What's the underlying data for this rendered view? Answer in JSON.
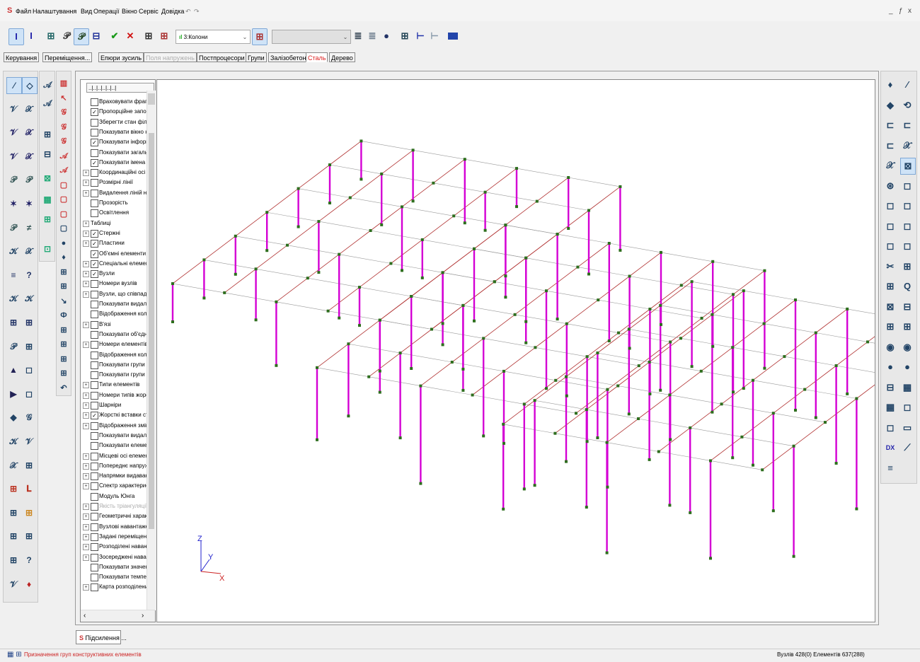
{
  "menu": {
    "items": [
      "Файл",
      "Налаштування",
      "Вид",
      "Операції",
      "Вікно",
      "Сервіс",
      "Довідка"
    ],
    "undo_icon": "undo-icon",
    "redo_icon": "redo-icon",
    "window_controls": [
      "_",
      "ƒ",
      "x"
    ]
  },
  "toolbar": {
    "combo_value": "3:Колони",
    "combo_empty": ""
  },
  "tabs": [
    {
      "label": "Керування",
      "state": "normal"
    },
    {
      "label": "Переміщення...",
      "state": "normal"
    },
    {
      "label": "Епюри зусиль",
      "state": "normal"
    },
    {
      "label": "Поля напружень",
      "state": "disabled"
    },
    {
      "label": "Постпроцесори",
      "state": "normal"
    },
    {
      "label": "Групи",
      "state": "normal"
    },
    {
      "label": "Залізобетон",
      "state": "normal"
    },
    {
      "label": "Сталь",
      "state": "active"
    },
    {
      "label": "Дерево",
      "state": "normal"
    }
  ],
  "tree": {
    "header": "..|..|..|..|..|..|",
    "rows": [
      {
        "label": "Враховувати фрагм",
        "checked": false,
        "expander": false
      },
      {
        "label": "Пропорційне запов",
        "checked": true,
        "expander": false
      },
      {
        "label": "Зберегти стан філь",
        "checked": false,
        "expander": false
      },
      {
        "label": "Показувати вікно на",
        "checked": false,
        "expander": false
      },
      {
        "label": "Показувати інформ",
        "checked": true,
        "expander": false
      },
      {
        "label": "Показувати загальн",
        "checked": false,
        "expander": false
      },
      {
        "label": "Показувати імена о",
        "checked": true,
        "expander": false
      },
      {
        "label": "Координаційні осі",
        "checked": false,
        "expander": true
      },
      {
        "label": "Розмірні лінії",
        "checked": false,
        "expander": true
      },
      {
        "label": "Видалення ліній нев",
        "checked": false,
        "expander": true
      },
      {
        "label": "Прозорість",
        "checked": false,
        "expander": false
      },
      {
        "label": "Освітлення",
        "checked": false,
        "expander": false
      },
      {
        "label": "Таблиці",
        "checked": null,
        "expander": true
      },
      {
        "label": "Стержні",
        "checked": true,
        "expander": true
      },
      {
        "label": "Пластини",
        "checked": true,
        "expander": true
      },
      {
        "label": "Об'ємні елементи",
        "checked": true,
        "expander": false
      },
      {
        "label": "Спеціальні елементи",
        "checked": true,
        "expander": true
      },
      {
        "label": "Вузли",
        "checked": true,
        "expander": true
      },
      {
        "label": "Номери вузлів",
        "checked": false,
        "expander": true
      },
      {
        "label": "Вузли, що співпадаю",
        "checked": false,
        "expander": true
      },
      {
        "label": "Показувати видален",
        "checked": false,
        "expander": false
      },
      {
        "label": "Відображення кольо",
        "checked": false,
        "expander": false
      },
      {
        "label": "В'язі",
        "checked": false,
        "expander": true
      },
      {
        "label": "Показувати об'єдна",
        "checked": false,
        "expander": false
      },
      {
        "label": "Номери елементів",
        "checked": false,
        "expander": true
      },
      {
        "label": "Відображення кольо",
        "checked": false,
        "expander": false
      },
      {
        "label": "Показувати групи к",
        "checked": false,
        "expander": false
      },
      {
        "label": "Показувати групи а",
        "checked": false,
        "expander": false
      },
      {
        "label": "Типи елементів",
        "checked": false,
        "expander": true
      },
      {
        "label": "Номери типів жорст",
        "checked": false,
        "expander": true
      },
      {
        "label": "Шарніри",
        "checked": false,
        "expander": true
      },
      {
        "label": "Жорсткі вставки ст",
        "checked": true,
        "expander": true
      },
      {
        "label": "Відображення зміщ",
        "checked": false,
        "expander": true
      },
      {
        "label": "Показувати видален",
        "checked": false,
        "expander": false
      },
      {
        "label": "Показувати елемен",
        "checked": false,
        "expander": false
      },
      {
        "label": "Місцеві осі елемент",
        "checked": false,
        "expander": true
      },
      {
        "label": "Попереднє напруже",
        "checked": false,
        "expander": true
      },
      {
        "label": "Напрямки видаванн",
        "checked": false,
        "expander": true
      },
      {
        "label": "Спектр характерист",
        "checked": false,
        "expander": true
      },
      {
        "label": "Модуль Юнга",
        "checked": false,
        "expander": false
      },
      {
        "label": "Якість тріангуляції",
        "checked": false,
        "expander": true,
        "grey": true
      },
      {
        "label": "Геометричні характ",
        "checked": false,
        "expander": true
      },
      {
        "label": "Вузлові навантажен",
        "checked": false,
        "expander": true
      },
      {
        "label": "Задані переміщенн",
        "checked": false,
        "expander": true
      },
      {
        "label": "Розподілені наванта",
        "checked": false,
        "expander": true
      },
      {
        "label": "Зосереджені наван",
        "checked": false,
        "expander": true
      },
      {
        "label": "Показувати значен",
        "checked": false,
        "expander": false
      },
      {
        "label": "Показувати темпер",
        "checked": false,
        "expander": false
      },
      {
        "label": "Карта розподілених",
        "checked": false,
        "expander": true
      }
    ]
  },
  "axes": {
    "z": "Z",
    "y": "Y",
    "x": "X"
  },
  "doc_tab": "Підсилення ...",
  "status": {
    "message": "Призначення груп конструктивних елементів",
    "counts": "Вузлів 428(0) Елементів 637(288)"
  },
  "colors": {
    "column": "#d400d4",
    "beam": "#b03030",
    "node": "#2e6e1e",
    "grid_line": "#9a9a9a",
    "active_tab": "#dd2222",
    "status_message": "#cc2222"
  }
}
